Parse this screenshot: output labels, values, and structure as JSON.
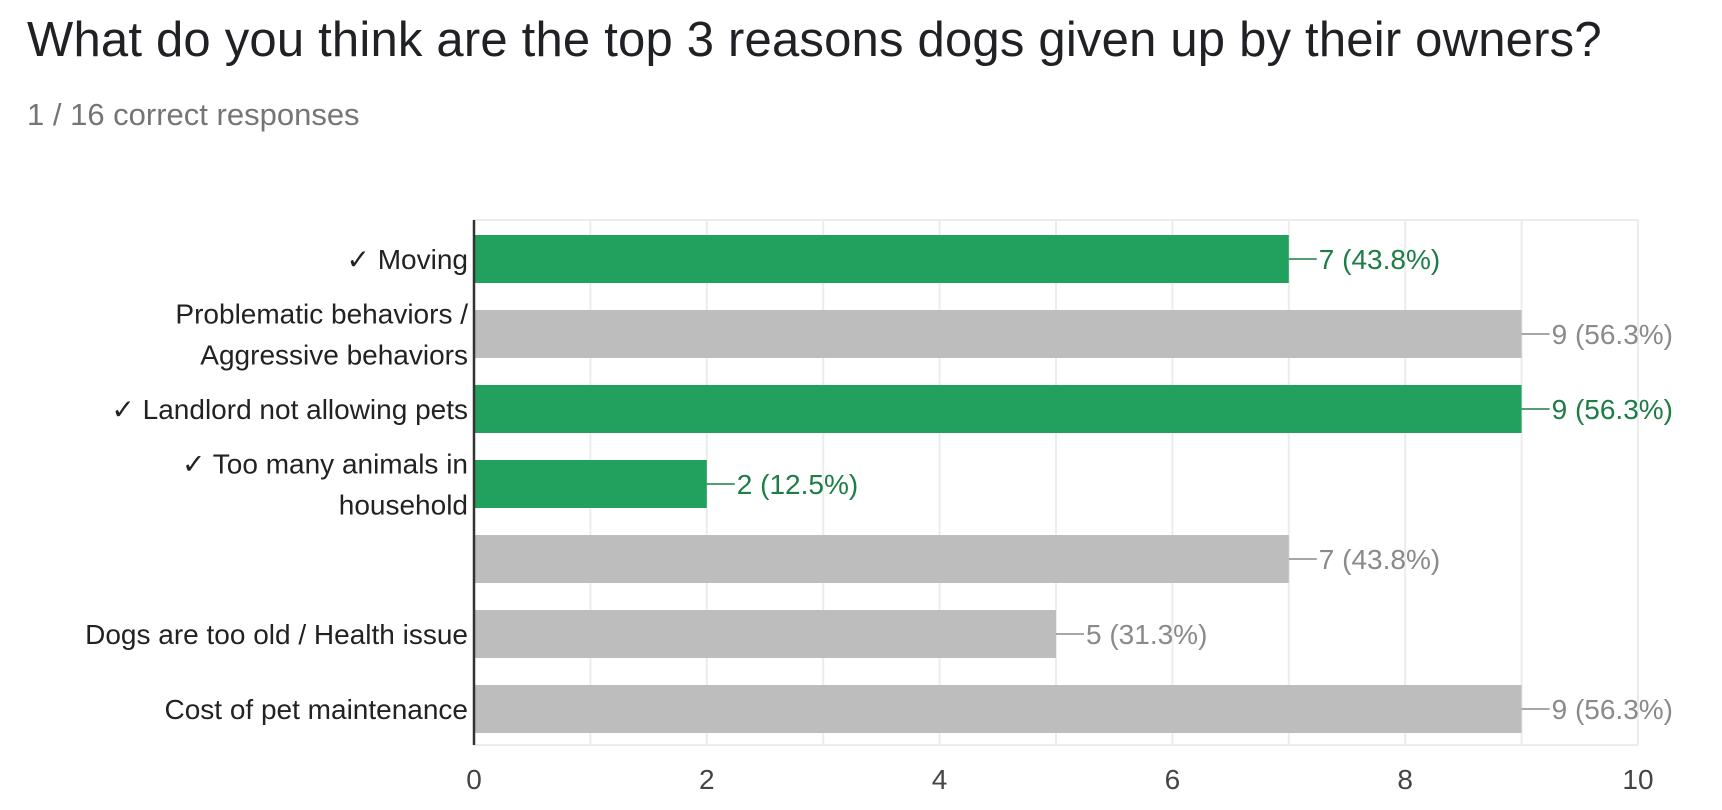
{
  "question": {
    "title": "What do you think are the top 3 reasons dogs given up by their owners?",
    "subtitle": "1 / 16 correct responses"
  },
  "colors": {
    "correct": "#21a05e",
    "correct_text": "#1e7d47",
    "incorrect": "#bdbdbd",
    "incorrect_text": "#8a8a8a",
    "grid": "#ececec",
    "axis": "#333333"
  },
  "chart_data": {
    "type": "bar",
    "orientation": "horizontal",
    "categories": [
      [
        "✓ Moving"
      ],
      [
        "Problematic behaviors /",
        "Aggressive behaviors"
      ],
      [
        "✓ Landlord not allowing pets"
      ],
      [
        "✓ Too many animals in",
        "household"
      ],
      [
        ""
      ],
      [
        "Dogs are too old / Health issue"
      ],
      [
        "Cost of pet maintenance"
      ]
    ],
    "values": [
      7,
      9,
      9,
      2,
      7,
      5,
      9
    ],
    "value_labels": [
      "7 (43.8%)",
      "9 (56.3%)",
      "9 (56.3%)",
      "2 (12.5%)",
      "7 (43.8%)",
      "5 (31.3%)",
      "9 (56.3%)"
    ],
    "correct": [
      true,
      false,
      true,
      true,
      false,
      false,
      false
    ],
    "xlim": [
      0,
      10
    ],
    "xticks": [
      "0",
      "2",
      "4",
      "6",
      "8",
      "10"
    ],
    "grid": true
  }
}
